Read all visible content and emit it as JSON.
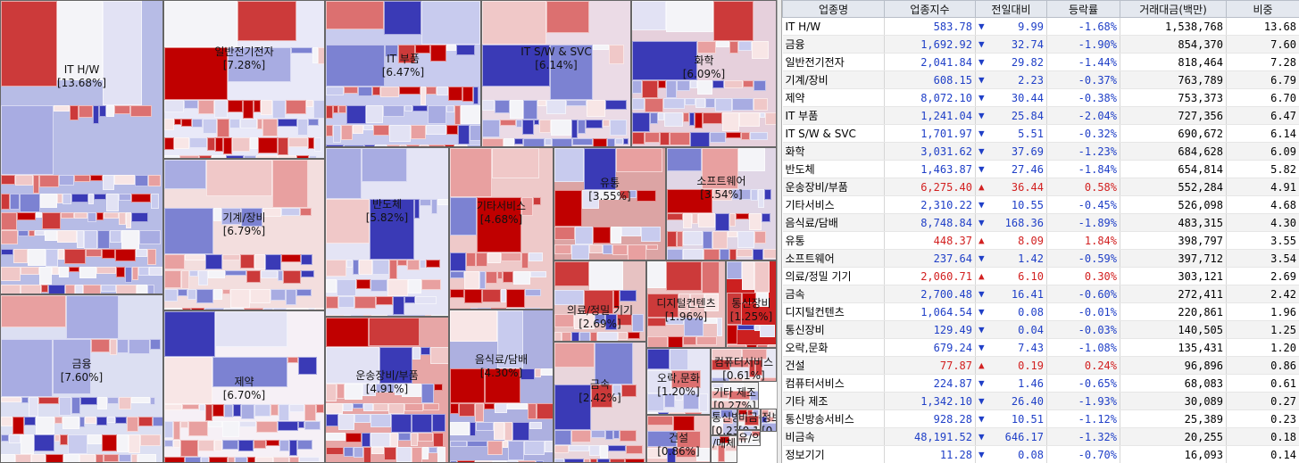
{
  "sectors": [
    {
      "id": "it-hw",
      "name": "IT H/W",
      "weight": "[13.68%]",
      "tint": "#b7bce6"
    },
    {
      "id": "finance",
      "name": "금융",
      "weight": "[7.60%]",
      "tint": "#dcdff2"
    },
    {
      "id": "electrical",
      "name": "일반전기전자",
      "weight": "[7.28%]",
      "tint": "#e9e9f8"
    },
    {
      "id": "machinery",
      "name": "기계/장비",
      "weight": "[6.79%]",
      "tint": "#f3dede"
    },
    {
      "id": "pharma",
      "name": "제약",
      "weight": "[6.70%]",
      "tint": "#f6f0f6"
    },
    {
      "id": "it-parts",
      "name": "IT 부품",
      "weight": "[6.47%]",
      "tint": "#c8cbee"
    },
    {
      "id": "it-sw",
      "name": "IT S/W & SVC",
      "weight": "[6.14%]",
      "tint": "#ebdbe6"
    },
    {
      "id": "chemical",
      "name": "화학",
      "weight": "[6.09%]",
      "tint": "#e6d0dc"
    },
    {
      "id": "semiconductor",
      "name": "반도체",
      "weight": "[5.82%]",
      "tint": "#e4e4f5"
    },
    {
      "id": "transport",
      "name": "운송장비/부품",
      "weight": "[4.91%]",
      "tint": "#e7a6a6"
    },
    {
      "id": "services",
      "name": "기타서비스",
      "weight": "[4.68%]",
      "tint": "#eec9c9"
    },
    {
      "id": "food",
      "name": "음식료/담배",
      "weight": "[4.30%]",
      "tint": "#adb0e0"
    },
    {
      "id": "distribution",
      "name": "유통",
      "weight": "[3.55%]",
      "tint": "#dca4a4"
    },
    {
      "id": "software",
      "name": "소프트웨어",
      "weight": "[3.54%]",
      "tint": "#e0d6e6"
    },
    {
      "id": "medical",
      "name": "의료/정밀 기기",
      "weight": "[2.69%]",
      "tint": "#e7c2c2"
    },
    {
      "id": "metal",
      "name": "금속",
      "weight": "[2.42%]",
      "tint": "#e9d6dc"
    },
    {
      "id": "digital",
      "name": "디지털컨텐츠",
      "weight": "[1.96%]",
      "tint": "#ecc2c2"
    },
    {
      "id": "telecom-eq",
      "name": "통신장비",
      "weight": "[1.25%]",
      "tint": "#cc2020"
    },
    {
      "id": "entertainment",
      "name": "오락,문화",
      "weight": "[1.20%]",
      "tint": "#e6e6f5"
    },
    {
      "id": "construction",
      "name": "건설",
      "weight": "[0.86%]",
      "tint": "#f0c8c8"
    },
    {
      "id": "computer-svc",
      "name": "컴퓨터서비스",
      "weight": "[0.61%]",
      "tint": "#e8e8f4"
    },
    {
      "id": "etc-mfg",
      "name": "기타 제조",
      "weight": "[0.27%]",
      "tint": "#f0f0f0"
    },
    {
      "id": "telecom-svc",
      "name": "통신방송서비스",
      "weight": "[0.23%]",
      "tint": "#c2c2e6"
    },
    {
      "id": "nonferrous",
      "name": "비금속",
      "weight": "[0.18%]",
      "tint": "#f2f2f2"
    },
    {
      "id": "info",
      "name": "정보기기",
      "weight": "[0.14%]",
      "tint": "#f2f2f2"
    },
    {
      "id": "fabric",
      "name": "유/의",
      "weight": "",
      "tint": "#f6f6f6"
    },
    {
      "id": "media",
      "name": "/매체",
      "weight": "",
      "tint": "#f6f6f6"
    }
  ],
  "table": {
    "headers": [
      "업종명",
      "업종지수",
      "전일대비",
      "등락률",
      "거래대금(백만)",
      "비중"
    ],
    "rows": [
      {
        "name": "IT H/W",
        "index": "583.78",
        "dir": "down",
        "change": "9.99",
        "rate": "-1.68%",
        "amount": "1,538,768",
        "share": "13.68"
      },
      {
        "name": "금융",
        "index": "1,692.92",
        "dir": "down",
        "change": "32.74",
        "rate": "-1.90%",
        "amount": "854,370",
        "share": "7.60"
      },
      {
        "name": "일반전기전자",
        "index": "2,041.84",
        "dir": "down",
        "change": "29.82",
        "rate": "-1.44%",
        "amount": "818,464",
        "share": "7.28"
      },
      {
        "name": "기계/장비",
        "index": "608.15",
        "dir": "down",
        "change": "2.23",
        "rate": "-0.37%",
        "amount": "763,789",
        "share": "6.79"
      },
      {
        "name": "제약",
        "index": "8,072.10",
        "dir": "down",
        "change": "30.44",
        "rate": "-0.38%",
        "amount": "753,373",
        "share": "6.70"
      },
      {
        "name": "IT 부품",
        "index": "1,241.04",
        "dir": "down",
        "change": "25.84",
        "rate": "-2.04%",
        "amount": "727,356",
        "share": "6.47"
      },
      {
        "name": "IT S/W & SVC",
        "index": "1,701.97",
        "dir": "down",
        "change": "5.51",
        "rate": "-0.32%",
        "amount": "690,672",
        "share": "6.14"
      },
      {
        "name": "화학",
        "index": "3,031.62",
        "dir": "down",
        "change": "37.69",
        "rate": "-1.23%",
        "amount": "684,628",
        "share": "6.09"
      },
      {
        "name": "반도체",
        "index": "1,463.87",
        "dir": "down",
        "change": "27.46",
        "rate": "-1.84%",
        "amount": "654,814",
        "share": "5.82"
      },
      {
        "name": "운송장비/부품",
        "index": "6,275.40",
        "dir": "up",
        "change": "36.44",
        "rate": "0.58%",
        "amount": "552,284",
        "share": "4.91"
      },
      {
        "name": "기타서비스",
        "index": "2,310.22",
        "dir": "down",
        "change": "10.55",
        "rate": "-0.45%",
        "amount": "526,098",
        "share": "4.68"
      },
      {
        "name": "음식료/담배",
        "index": "8,748.84",
        "dir": "down",
        "change": "168.36",
        "rate": "-1.89%",
        "amount": "483,315",
        "share": "4.30"
      },
      {
        "name": "유통",
        "index": "448.37",
        "dir": "up",
        "change": "8.09",
        "rate": "1.84%",
        "amount": "398,797",
        "share": "3.55"
      },
      {
        "name": "소프트웨어",
        "index": "237.64",
        "dir": "down",
        "change": "1.42",
        "rate": "-0.59%",
        "amount": "397,712",
        "share": "3.54"
      },
      {
        "name": "의료/정밀 기기",
        "index": "2,060.71",
        "dir": "up",
        "change": "6.10",
        "rate": "0.30%",
        "amount": "303,121",
        "share": "2.69"
      },
      {
        "name": "금속",
        "index": "2,700.48",
        "dir": "down",
        "change": "16.41",
        "rate": "-0.60%",
        "amount": "272,411",
        "share": "2.42"
      },
      {
        "name": "디지털컨텐츠",
        "index": "1,064.54",
        "dir": "down",
        "change": "0.08",
        "rate": "-0.01%",
        "amount": "220,861",
        "share": "1.96"
      },
      {
        "name": "통신장비",
        "index": "129.49",
        "dir": "down",
        "change": "0.04",
        "rate": "-0.03%",
        "amount": "140,505",
        "share": "1.25"
      },
      {
        "name": "오락,문화",
        "index": "679.24",
        "dir": "down",
        "change": "7.43",
        "rate": "-1.08%",
        "amount": "135,431",
        "share": "1.20"
      },
      {
        "name": "건설",
        "index": "77.87",
        "dir": "up",
        "change": "0.19",
        "rate": "0.24%",
        "amount": "96,896",
        "share": "0.86"
      },
      {
        "name": "컴퓨터서비스",
        "index": "224.87",
        "dir": "down",
        "change": "1.46",
        "rate": "-0.65%",
        "amount": "68,083",
        "share": "0.61"
      },
      {
        "name": "기타 제조",
        "index": "1,342.10",
        "dir": "down",
        "change": "26.40",
        "rate": "-1.93%",
        "amount": "30,089",
        "share": "0.27"
      },
      {
        "name": "통신방송서비스",
        "index": "928.28",
        "dir": "down",
        "change": "10.51",
        "rate": "-1.12%",
        "amount": "25,389",
        "share": "0.23"
      },
      {
        "name": "비금속",
        "index": "48,191.52",
        "dir": "down",
        "change": "646.17",
        "rate": "-1.32%",
        "amount": "20,255",
        "share": "0.18"
      },
      {
        "name": "정보기기",
        "index": "11.28",
        "dir": "down",
        "change": "0.08",
        "rate": "-0.70%",
        "amount": "16,093",
        "share": "0.14"
      }
    ]
  },
  "colors": {
    "up": "#d22020",
    "down": "#1f3fc7",
    "strong_red": "#c00000",
    "strong_blue": "#3333b0"
  }
}
